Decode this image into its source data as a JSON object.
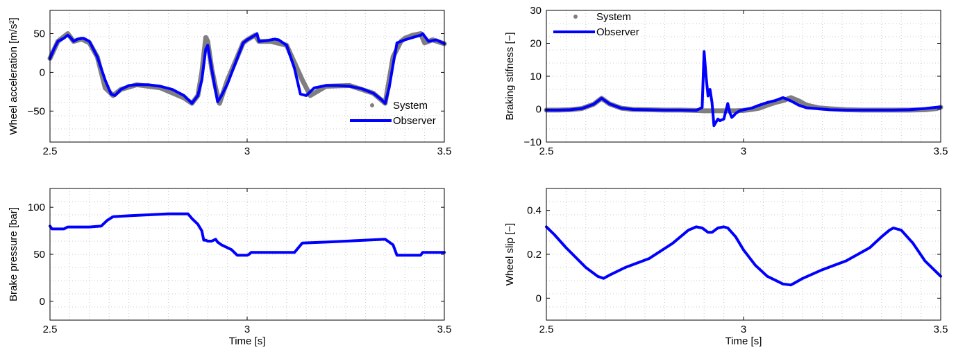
{
  "colors": {
    "system": "#7f7f7f",
    "observer": "#0000ff",
    "grid": "#c8c8c8"
  },
  "chart_data": [
    {
      "id": "wheel-acceleration",
      "type": "line",
      "xlabel": "",
      "ylabel": "Wheel acceleration [m/s²]",
      "xlim": [
        2.5,
        3.5
      ],
      "ylim": [
        -90,
        80
      ],
      "xticks": [
        2.5,
        3,
        3.5
      ],
      "xtick_labels": [
        "2.5",
        "3",
        "3.5"
      ],
      "yticks": [
        -50,
        0,
        50
      ],
      "ytick_labels": [
        "−50",
        "0",
        "50"
      ],
      "grid": true,
      "legend": {
        "position": "bottom-right",
        "entries": [
          "System",
          "Observer"
        ]
      },
      "series": [
        {
          "name": "System",
          "style": "markers",
          "x": [
            2.5,
            2.52,
            2.535,
            2.545,
            2.56,
            2.58,
            2.6,
            2.62,
            2.64,
            2.66,
            2.68,
            2.72,
            2.78,
            2.84,
            2.86,
            2.875,
            2.885,
            2.895,
            2.9,
            2.91,
            2.92,
            2.93,
            2.95,
            2.975,
            2.99,
            3.0,
            3.01,
            3.02,
            3.03,
            3.06,
            3.1,
            3.14,
            3.16,
            3.2,
            3.26,
            3.32,
            3.35,
            3.37,
            3.39,
            3.4,
            3.42,
            3.44,
            3.45,
            3.47,
            3.5
          ],
          "y": [
            18,
            40,
            46,
            50,
            40,
            43,
            38,
            20,
            -20,
            -30,
            -22,
            -16,
            -20,
            -33,
            -40,
            -30,
            0,
            45,
            40,
            5,
            -20,
            -40,
            -10,
            20,
            38,
            42,
            45,
            48,
            40,
            40,
            35,
            -10,
            -30,
            -18,
            -17,
            -27,
            -40,
            20,
            40,
            44,
            48,
            50,
            38,
            42,
            37
          ]
        },
        {
          "name": "Observer",
          "style": "line",
          "x": [
            2.5,
            2.51,
            2.52,
            2.535,
            2.545,
            2.55,
            2.56,
            2.57,
            2.585,
            2.6,
            2.62,
            2.64,
            2.655,
            2.665,
            2.68,
            2.7,
            2.72,
            2.75,
            2.78,
            2.81,
            2.84,
            2.86,
            2.875,
            2.885,
            2.89,
            2.895,
            2.9,
            2.905,
            2.915,
            2.925,
            2.935,
            2.95,
            2.965,
            2.98,
            2.99,
            3.0,
            3.01,
            3.02,
            3.025,
            3.03,
            3.05,
            3.07,
            3.08,
            3.1,
            3.12,
            3.135,
            3.15,
            3.17,
            3.2,
            3.23,
            3.26,
            3.29,
            3.32,
            3.34,
            3.35,
            3.36,
            3.37,
            3.38,
            3.4,
            3.42,
            3.44,
            3.445,
            3.46,
            3.48,
            3.5
          ],
          "y": [
            18,
            30,
            40,
            44,
            48,
            46,
            40,
            43,
            44,
            40,
            20,
            -10,
            -28,
            -30,
            -22,
            -17,
            -16,
            -16,
            -18,
            -22,
            -30,
            -40,
            -30,
            -10,
            10,
            30,
            35,
            20,
            -10,
            -38,
            -30,
            -15,
            5,
            25,
            38,
            42,
            45,
            48,
            50,
            40,
            41,
            43,
            42,
            35,
            5,
            -28,
            -30,
            -20,
            -17,
            -17,
            -18,
            -21,
            -27,
            -35,
            -40,
            -20,
            10,
            38,
            42,
            45,
            48,
            50,
            40,
            42,
            37
          ]
        }
      ]
    },
    {
      "id": "braking-stiffness",
      "type": "line",
      "xlabel": "",
      "ylabel": "Braking stifness [−]",
      "xlim": [
        2.5,
        3.5
      ],
      "ylim": [
        -10,
        30
      ],
      "xticks": [
        2.5,
        3,
        3.5
      ],
      "xtick_labels": [
        "2.5",
        "3",
        "3.5"
      ],
      "yticks": [
        -10,
        0,
        10,
        20,
        30
      ],
      "ytick_labels": [
        "−10",
        "0",
        "10",
        "20",
        "30"
      ],
      "grid": true,
      "legend": {
        "position": "top-left",
        "entries": [
          "System",
          "Observer"
        ]
      },
      "series": [
        {
          "name": "System",
          "style": "markers",
          "x": [
            2.5,
            2.53,
            2.56,
            2.59,
            2.62,
            2.64,
            2.66,
            2.69,
            2.72,
            2.76,
            2.8,
            2.84,
            2.88,
            2.9,
            2.92,
            2.94,
            2.96,
            2.98,
            3.0,
            3.02,
            3.04,
            3.06,
            3.08,
            3.1,
            3.12,
            3.14,
            3.16,
            3.19,
            3.22,
            3.26,
            3.3,
            3.34,
            3.38,
            3.42,
            3.46,
            3.49,
            3.5
          ],
          "y": [
            -0.3,
            -0.3,
            -0.2,
            0.2,
            1.5,
            3.3,
            1.6,
            0.3,
            -0.1,
            -0.2,
            -0.3,
            -0.3,
            -0.4,
            -0.5,
            -0.5,
            -0.5,
            -0.5,
            -0.5,
            -0.4,
            -0.1,
            0.3,
            1.2,
            2.0,
            2.6,
            3.5,
            2.5,
            1.2,
            0.4,
            0.1,
            -0.2,
            -0.3,
            -0.3,
            -0.3,
            -0.3,
            -0.2,
            0.2,
            0.6
          ]
        },
        {
          "name": "Observer",
          "style": "line",
          "x": [
            2.5,
            2.53,
            2.56,
            2.59,
            2.62,
            2.64,
            2.66,
            2.69,
            2.72,
            2.76,
            2.8,
            2.84,
            2.88,
            2.895,
            2.9,
            2.905,
            2.91,
            2.915,
            2.92,
            2.925,
            2.93,
            2.935,
            2.94,
            2.95,
            2.96,
            2.965,
            2.97,
            2.975,
            2.98,
            2.99,
            3.0,
            3.02,
            3.04,
            3.06,
            3.08,
            3.1,
            3.12,
            3.14,
            3.16,
            3.19,
            3.22,
            3.26,
            3.3,
            3.34,
            3.38,
            3.42,
            3.46,
            3.49,
            3.5
          ],
          "y": [
            -0.3,
            -0.3,
            -0.2,
            0.2,
            1.5,
            3.3,
            1.6,
            0.3,
            -0.1,
            -0.2,
            -0.3,
            -0.3,
            -0.4,
            0.5,
            17.5,
            10,
            4,
            6,
            2,
            -5,
            -4,
            -3,
            -3.5,
            -3,
            1.7,
            -1,
            -2.5,
            -2,
            -1.3,
            -0.5,
            -0.2,
            0.3,
            1.2,
            2.0,
            2.6,
            3.5,
            2.5,
            1.2,
            0.4,
            0.1,
            -0.2,
            -0.3,
            -0.3,
            -0.3,
            -0.3,
            -0.2,
            0.2,
            0.6,
            0.6
          ]
        }
      ]
    },
    {
      "id": "brake-pressure",
      "type": "line",
      "xlabel": "Time [s]",
      "ylabel": "Brake pressure [bar]",
      "xlim": [
        2.5,
        3.5
      ],
      "ylim": [
        -20,
        120
      ],
      "xticks": [
        2.5,
        3,
        3.5
      ],
      "xtick_labels": [
        "2.5",
        "3",
        "3.5"
      ],
      "yticks": [
        0,
        50,
        100
      ],
      "ytick_labels": [
        "0",
        "50",
        "100"
      ],
      "grid": true,
      "series": [
        {
          "name": "",
          "style": "line",
          "x": [
            2.5,
            2.505,
            2.52,
            2.535,
            2.545,
            2.555,
            2.6,
            2.63,
            2.645,
            2.66,
            2.7,
            2.75,
            2.8,
            2.85,
            2.86,
            2.875,
            2.885,
            2.89,
            2.895,
            2.9,
            2.91,
            2.92,
            2.925,
            2.935,
            2.96,
            2.975,
            2.98,
            3.0,
            3.005,
            3.01,
            3.02,
            3.05,
            3.1,
            3.12,
            3.13,
            3.14,
            3.2,
            3.3,
            3.35,
            3.37,
            3.38,
            3.42,
            3.44,
            3.445,
            3.5
          ],
          "y": [
            80,
            77,
            77,
            77,
            79,
            79,
            79,
            80,
            86,
            90,
            91,
            92,
            93,
            93,
            88,
            82,
            75,
            65,
            65,
            64,
            64,
            66,
            63,
            60,
            55,
            49,
            49,
            49,
            50,
            52,
            52,
            52,
            52,
            52,
            57,
            62,
            63,
            65,
            66,
            60,
            49,
            49,
            49,
            52,
            52
          ]
        }
      ]
    },
    {
      "id": "wheel-slip",
      "type": "line",
      "xlabel": "Time [s]",
      "ylabel": "Wheel slip [−]",
      "xlim": [
        2.5,
        3.5
      ],
      "ylim": [
        -0.1,
        0.5
      ],
      "xticks": [
        2.5,
        3,
        3.5
      ],
      "xtick_labels": [
        "2.5",
        "3",
        "3.5"
      ],
      "yticks": [
        0,
        0.2,
        0.4
      ],
      "ytick_labels": [
        "0",
        "0.2",
        "0.4"
      ],
      "grid": true,
      "series": [
        {
          "name": "",
          "style": "line",
          "x": [
            2.5,
            2.52,
            2.55,
            2.6,
            2.63,
            2.645,
            2.66,
            2.7,
            2.76,
            2.82,
            2.86,
            2.88,
            2.895,
            2.91,
            2.92,
            2.935,
            2.95,
            2.96,
            2.98,
            3.0,
            3.03,
            3.06,
            3.1,
            3.12,
            3.13,
            3.15,
            3.2,
            3.26,
            3.32,
            3.35,
            3.37,
            3.38,
            3.4,
            3.43,
            3.46,
            3.5
          ],
          "y": [
            0.325,
            0.29,
            0.23,
            0.14,
            0.1,
            0.09,
            0.105,
            0.14,
            0.18,
            0.25,
            0.31,
            0.325,
            0.32,
            0.3,
            0.3,
            0.32,
            0.325,
            0.32,
            0.28,
            0.22,
            0.15,
            0.1,
            0.065,
            0.06,
            0.07,
            0.09,
            0.13,
            0.17,
            0.23,
            0.28,
            0.31,
            0.32,
            0.31,
            0.25,
            0.17,
            0.1
          ]
        }
      ]
    }
  ]
}
